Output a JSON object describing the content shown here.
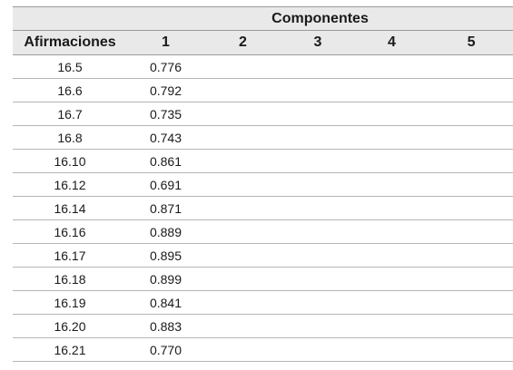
{
  "table": {
    "group_header": "Componentes",
    "columns": [
      "Afirmaciones",
      "1",
      "2",
      "3",
      "4",
      "5"
    ],
    "rows": [
      {
        "statement": "16.5",
        "c1": "0.776",
        "c2": "",
        "c3": "",
        "c4": "",
        "c5": ""
      },
      {
        "statement": "16.6",
        "c1": "0.792",
        "c2": "",
        "c3": "",
        "c4": "",
        "c5": ""
      },
      {
        "statement": "16.7",
        "c1": "0.735",
        "c2": "",
        "c3": "",
        "c4": "",
        "c5": ""
      },
      {
        "statement": "16.8",
        "c1": "0.743",
        "c2": "",
        "c3": "",
        "c4": "",
        "c5": ""
      },
      {
        "statement": "16.10",
        "c1": "0.861",
        "c2": "",
        "c3": "",
        "c4": "",
        "c5": ""
      },
      {
        "statement": "16.12",
        "c1": "0.691",
        "c2": "",
        "c3": "",
        "c4": "",
        "c5": ""
      },
      {
        "statement": "16.14",
        "c1": "0.871",
        "c2": "",
        "c3": "",
        "c4": "",
        "c5": ""
      },
      {
        "statement": "16.16",
        "c1": "0.889",
        "c2": "",
        "c3": "",
        "c4": "",
        "c5": ""
      },
      {
        "statement": "16.17",
        "c1": "0.895",
        "c2": "",
        "c3": "",
        "c4": "",
        "c5": ""
      },
      {
        "statement": "16.18",
        "c1": "0.899",
        "c2": "",
        "c3": "",
        "c4": "",
        "c5": ""
      },
      {
        "statement": "16.19",
        "c1": "0.841",
        "c2": "",
        "c3": "",
        "c4": "",
        "c5": ""
      },
      {
        "statement": "16.20",
        "c1": "0.883",
        "c2": "",
        "c3": "",
        "c4": "",
        "c5": ""
      },
      {
        "statement": "16.21",
        "c1": "0.770",
        "c2": "",
        "c3": "",
        "c4": "",
        "c5": ""
      }
    ]
  }
}
